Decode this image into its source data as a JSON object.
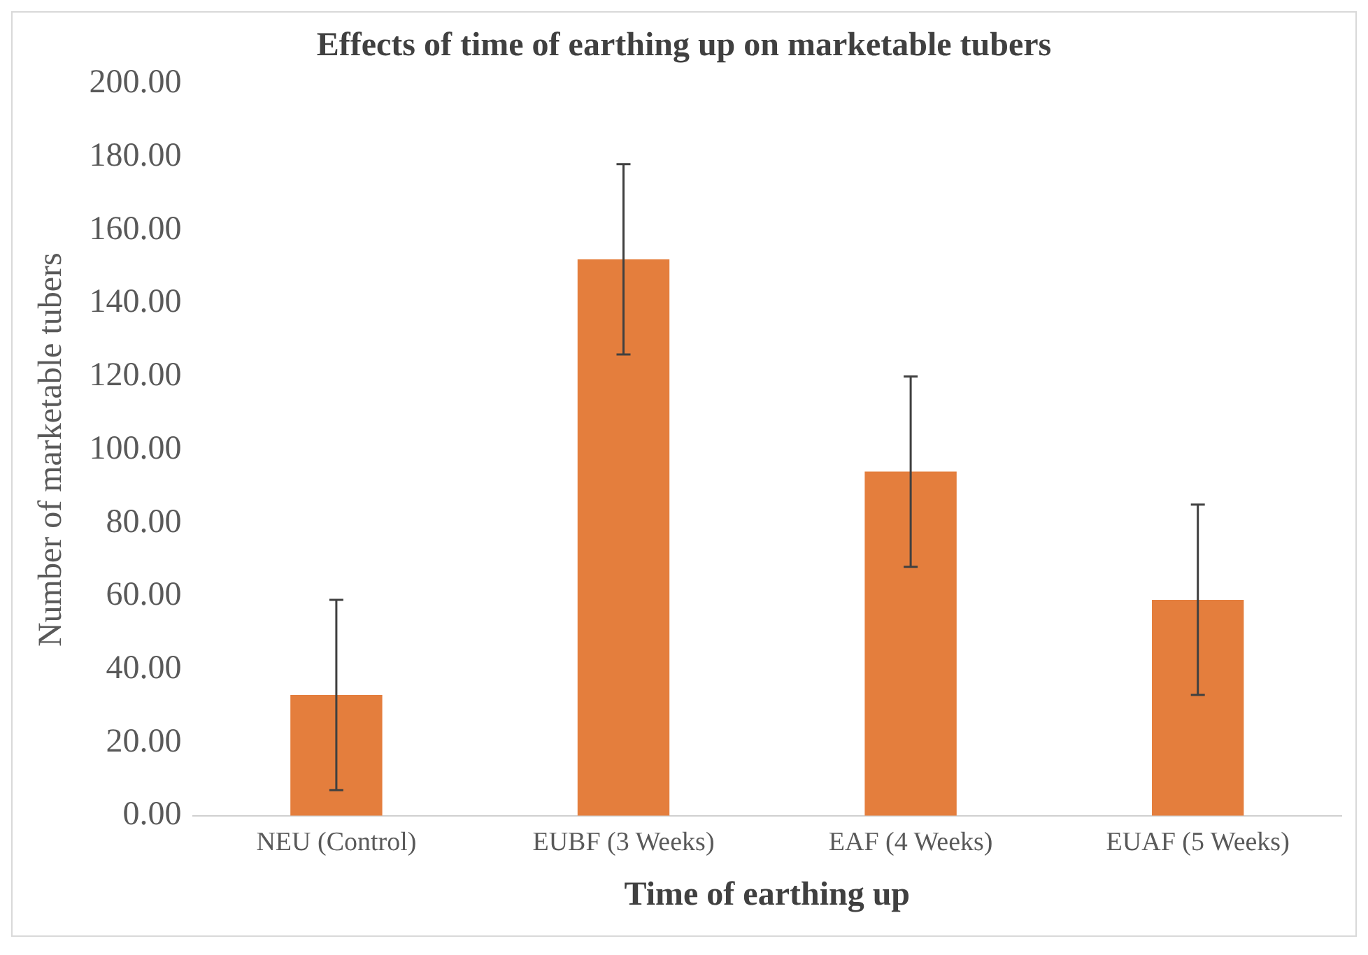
{
  "chart_data": {
    "type": "bar",
    "title": "Effects of time of earthing up on marketable tubers",
    "xlabel": "Time of earthing up",
    "ylabel": "Number of marketable tubers",
    "categories": [
      "NEU (Control)",
      "EUBF (3 Weeks)",
      "EAF (4 Weeks)",
      "EUAF (5 Weeks)"
    ],
    "values": [
      33,
      152,
      94,
      59
    ],
    "errors": [
      26,
      26,
      26,
      26
    ],
    "color": "#e47e3d",
    "ylim": [
      0,
      200
    ],
    "yticks": [
      {
        "value": 0,
        "label": "0.00"
      },
      {
        "value": 20,
        "label": "20.00"
      },
      {
        "value": 40,
        "label": "40.00"
      },
      {
        "value": 60,
        "label": "60.00"
      },
      {
        "value": 80,
        "label": "80.00"
      },
      {
        "value": 100,
        "label": "100.00"
      },
      {
        "value": 120,
        "label": "120.00"
      },
      {
        "value": 140,
        "label": "140.00"
      },
      {
        "value": 160,
        "label": "160.00"
      },
      {
        "value": 180,
        "label": "180.00"
      },
      {
        "value": 200,
        "label": "200.00"
      }
    ],
    "grid": false,
    "legend": false
  }
}
